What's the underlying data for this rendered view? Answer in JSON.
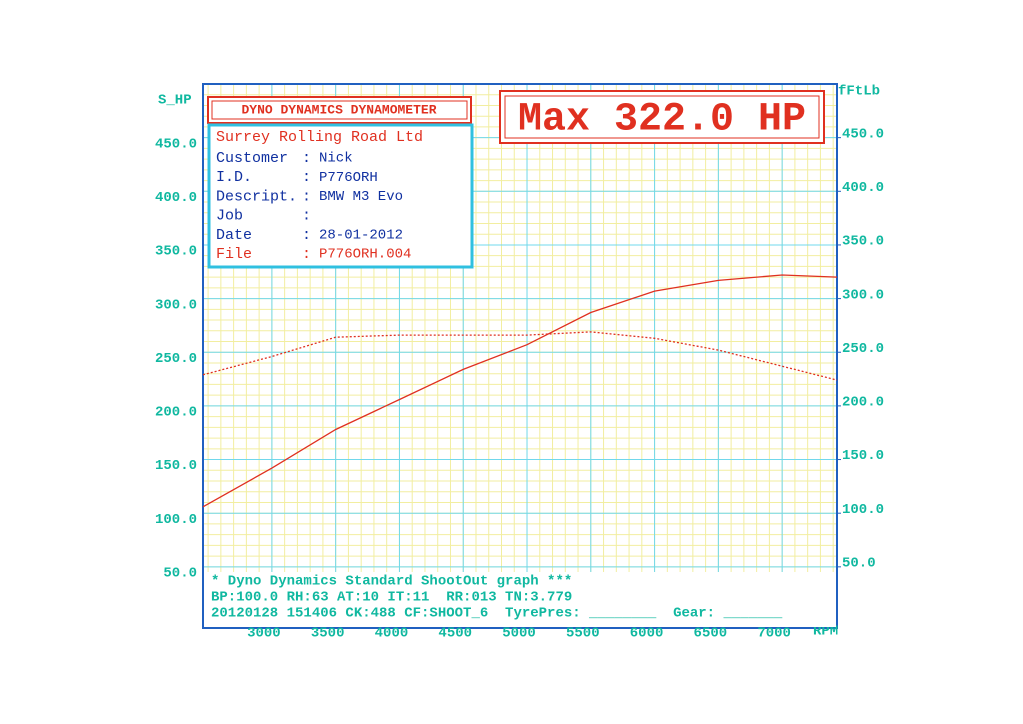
{
  "chart_data": {
    "type": "line",
    "header": "DYNO DYNAMICS DYNAMOMETER",
    "max_label": "Max 322.0 HP",
    "info": {
      "title": "Surrey Rolling Road Ltd",
      "separator": ":",
      "rows": [
        [
          "Customer",
          "Nick"
        ],
        [
          "I.D.",
          "P776ORH"
        ],
        [
          "Descript.",
          "BMW M3 Evo"
        ],
        [
          "Job"
        ],
        [
          "Date",
          "28-01-2012"
        ],
        [
          "File",
          "P776ORH.004"
        ]
      ]
    },
    "footer": [
      "* Dyno Dynamics Standard ShootOut graph ***",
      "BP:100.0 RH:63 AT:10 IT:11  RR:013 TN:3.779",
      "20120128 151406 CK:488 CF:SHOOT_6  TyrePres: ________  Gear: _______"
    ],
    "xlabel": "RPM",
    "ylabel": "S_HP",
    "y2label": "fFtLb",
    "x": [
      2460,
      3000,
      3500,
      4000,
      4500,
      5000,
      5500,
      6000,
      6500,
      7000,
      7430
    ],
    "series": [
      {
        "color": "#e03020",
        "values": [
          106,
          142,
          178,
          206,
          234,
          257,
          287,
          307,
          317,
          322,
          320
        ],
        "style": "solid"
      },
      {
        "color": "#e03020",
        "values": [
          229,
          246,
          264,
          266,
          266,
          266,
          269,
          263,
          252,
          237,
          224
        ],
        "axis": "y2",
        "style": "dotted"
      }
    ],
    "xlim": [
      2460,
      7430
    ],
    "xticks": [
      3000,
      3500,
      4000,
      4500,
      5000,
      5500,
      6000,
      6500,
      7000
    ],
    "ylim": [
      -7,
      500
    ],
    "yticks": [
      {
        "value": 50,
        "label": "50.0"
      },
      {
        "value": 100,
        "label": "100.0"
      },
      {
        "value": 150,
        "label": "150.0"
      },
      {
        "value": 200,
        "label": "200.0"
      },
      {
        "value": 250,
        "label": "250.0"
      },
      {
        "value": 300,
        "label": "300.0"
      },
      {
        "value": 350,
        "label": "350.0"
      },
      {
        "value": 400,
        "label": "400.0"
      },
      {
        "value": 450,
        "label": "450.0"
      }
    ],
    "y2lim": [
      -7,
      500
    ],
    "y2ticks": [
      {
        "value": 50,
        "label": "50.0"
      },
      {
        "value": 100,
        "label": "100.0"
      },
      {
        "value": 150,
        "label": "150.0"
      },
      {
        "value": 200,
        "label": "200.0"
      },
      {
        "value": 250,
        "label": "250.0"
      },
      {
        "value": 300,
        "label": "300.0"
      },
      {
        "value": 350,
        "label": "350.0"
      },
      {
        "value": 400,
        "label": "400.0"
      },
      {
        "value": 450,
        "label": "450.0"
      }
    ],
    "grid": true
  }
}
